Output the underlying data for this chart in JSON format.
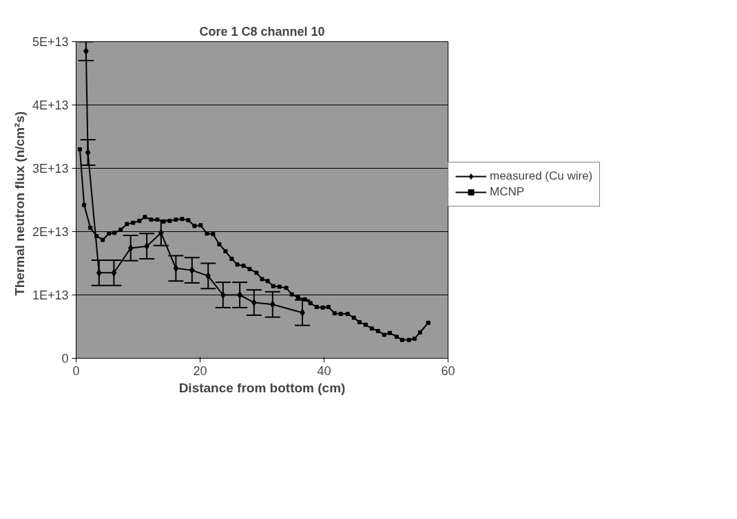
{
  "chart_data": {
    "type": "line",
    "title": "Core 1 C8 channel 10",
    "xlabel": "Distance from bottom (cm)",
    "ylabel": "Thermal neutron flux   (n/cm²s)",
    "xlim": [
      0,
      60
    ],
    "xticks": [
      0,
      20,
      40,
      60
    ],
    "ylim": [
      0,
      50000000000000.0
    ],
    "yticks": [
      0,
      {
        "value": 10000000000000.0,
        "label": "1E+13"
      },
      {
        "value": 20000000000000.0,
        "label": "2E+13"
      },
      {
        "value": 30000000000000.0,
        "label": "3E+13"
      },
      {
        "value": 40000000000000.0,
        "label": "4E+13"
      },
      {
        "value": 50000000000000.0,
        "label": "5E+13"
      }
    ],
    "grid": "y",
    "legend": "right",
    "series": [
      {
        "name": "measured (Cu wire)",
        "color": "#000000",
        "marker": "diamond",
        "x": [
          1.6,
          1.9,
          3.7,
          6.1,
          8.8,
          11.4,
          13.7,
          16.1,
          18.7,
          21.3,
          23.7,
          26.4,
          28.7,
          31.7,
          36.5
        ],
        "values": [
          48500000000000.0,
          32500000000000.0,
          13500000000000.0,
          13500000000000.0,
          17400000000000.0,
          17700000000000.0,
          19800000000000.0,
          14200000000000.0,
          13900000000000.0,
          13000000000000.0,
          10000000000000.0,
          10000000000000.0,
          8800000000000.0,
          8500000000000.0,
          7200000000000.0
        ],
        "errors": [
          1500000000000.0,
          2000000000000.0,
          2000000000000.0,
          2000000000000.0,
          2000000000000.0,
          2000000000000.0,
          2000000000000.0,
          2000000000000.0,
          2000000000000.0,
          2000000000000.0,
          2000000000000.0,
          2000000000000.0,
          2000000000000.0,
          2000000000000.0,
          2000000000000.0
        ]
      },
      {
        "name": "MCNP",
        "color": "#000000",
        "marker": "square",
        "x": [
          0.6,
          1.3,
          2.3,
          3.3,
          4.3,
          5.3,
          6.2,
          7.2,
          8.2,
          9.2,
          10.2,
          11.1,
          12.1,
          13.1,
          14.1,
          15.1,
          16.1,
          17.1,
          18.1,
          19.1,
          20.1,
          21.1,
          22.1,
          23.1,
          24.1,
          25.1,
          26,
          27,
          28,
          29.1,
          30,
          30.9,
          31.8,
          32.8,
          33.9,
          34.8,
          35.8,
          36.9,
          37.8,
          38.8,
          39.8,
          40.7,
          41.7,
          42.7,
          43.8,
          44.8,
          45.7,
          46.7,
          47.7,
          48.7,
          49.7,
          50.6,
          51.7,
          52.6,
          53.7,
          54.6,
          55.5,
          56.8
        ],
        "values": [
          33000000000000.0,
          24200000000000.0,
          20600000000000.0,
          19300000000000.0,
          18700000000000.0,
          19700000000000.0,
          19800000000000.0,
          20300000000000.0,
          21200000000000.0,
          21400000000000.0,
          21700000000000.0,
          22300000000000.0,
          21900000000000.0,
          21900000000000.0,
          21600000000000.0,
          21700000000000.0,
          21900000000000.0,
          22000000000000.0,
          21800000000000.0,
          20900000000000.0,
          21000000000000.0,
          19700000000000.0,
          19600000000000.0,
          18000000000000.0,
          16900000000000.0,
          15700000000000.0,
          14800000000000.0,
          14600000000000.0,
          14100000000000.0,
          13500000000000.0,
          12500000000000.0,
          12200000000000.0,
          11400000000000.0,
          11300000000000.0,
          11100000000000.0,
          10100000000000.0,
          9600000000000.0,
          9300000000000.0,
          8700000000000.0,
          8100000000000.0,
          8000000000000.0,
          8100000000000.0,
          7100000000000.0,
          7000000000000.0,
          7000000000000.0,
          6400000000000.0,
          5700000000000.0,
          5300000000000.0,
          4700000000000.0,
          4300000000000.0,
          3700000000000.0,
          4000000000000.0,
          3400000000000.0,
          2900000000000.0,
          2900000000000.0,
          3100000000000.0,
          4100000000000.0,
          5600000000000.0
        ]
      }
    ]
  }
}
